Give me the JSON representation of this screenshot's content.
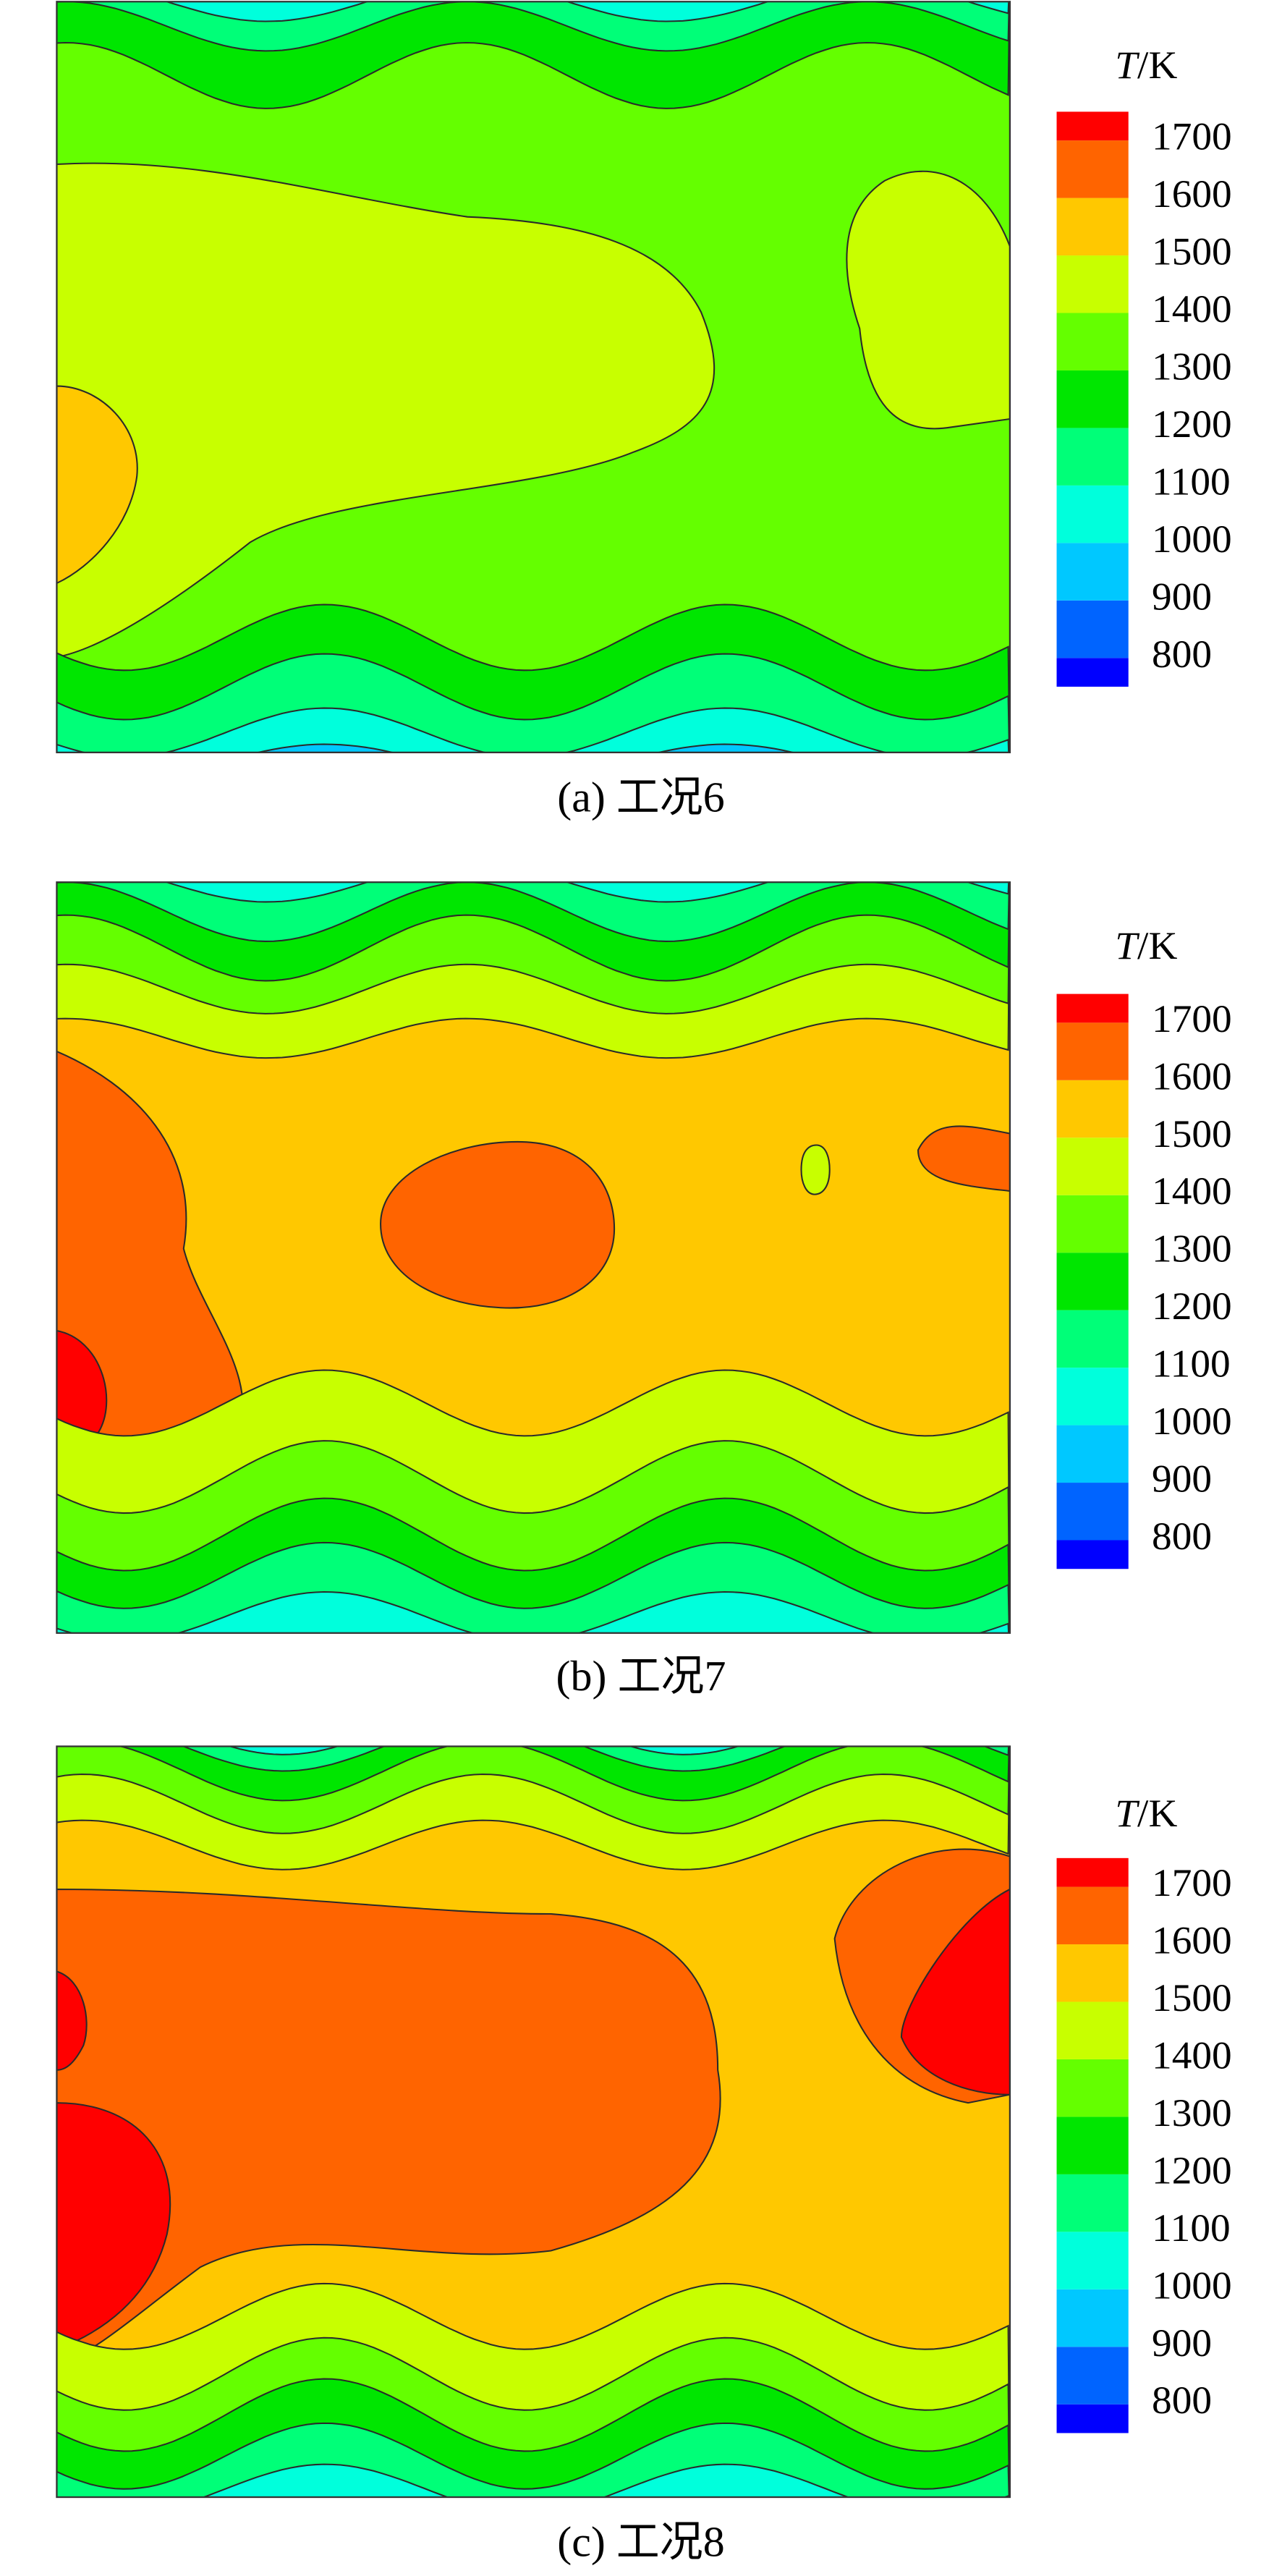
{
  "chart_data": [
    {
      "type": "contour",
      "caption": "(a) 工况6",
      "colorbar": {
        "title": "T/K",
        "lim": [
          750,
          1750
        ],
        "ticks": [
          800,
          900,
          1000,
          1100,
          1200,
          1300,
          1400,
          1500,
          1600,
          1700
        ],
        "colors": [
          "#0000ff",
          "#0064ff",
          "#00c8ff",
          "#00ffdc",
          "#00ff78",
          "#00e600",
          "#64ff00",
          "#c8ff00",
          "#ffc800",
          "#ff6400",
          "#ff0000"
        ]
      }
    },
    {
      "type": "contour",
      "caption": "(b) 工况7",
      "colorbar": {
        "title": "T/K",
        "lim": [
          750,
          1750
        ],
        "ticks": [
          800,
          900,
          1000,
          1100,
          1200,
          1300,
          1400,
          1500,
          1600,
          1700
        ],
        "colors": [
          "#0000ff",
          "#0064ff",
          "#00c8ff",
          "#00ffdc",
          "#00ff78",
          "#00e600",
          "#64ff00",
          "#c8ff00",
          "#ffc800",
          "#ff6400",
          "#ff0000"
        ]
      }
    },
    {
      "type": "contour",
      "caption": "(c) 工况8",
      "colorbar": {
        "title": "T/K",
        "lim": [
          750,
          1750
        ],
        "ticks": [
          800,
          900,
          1000,
          1100,
          1200,
          1300,
          1400,
          1500,
          1600,
          1700
        ],
        "colors": [
          "#0000ff",
          "#0064ff",
          "#00c8ff",
          "#00ffdc",
          "#00ff78",
          "#00e600",
          "#64ff00",
          "#c8ff00",
          "#ffc800",
          "#ff6400",
          "#ff0000"
        ]
      }
    }
  ]
}
